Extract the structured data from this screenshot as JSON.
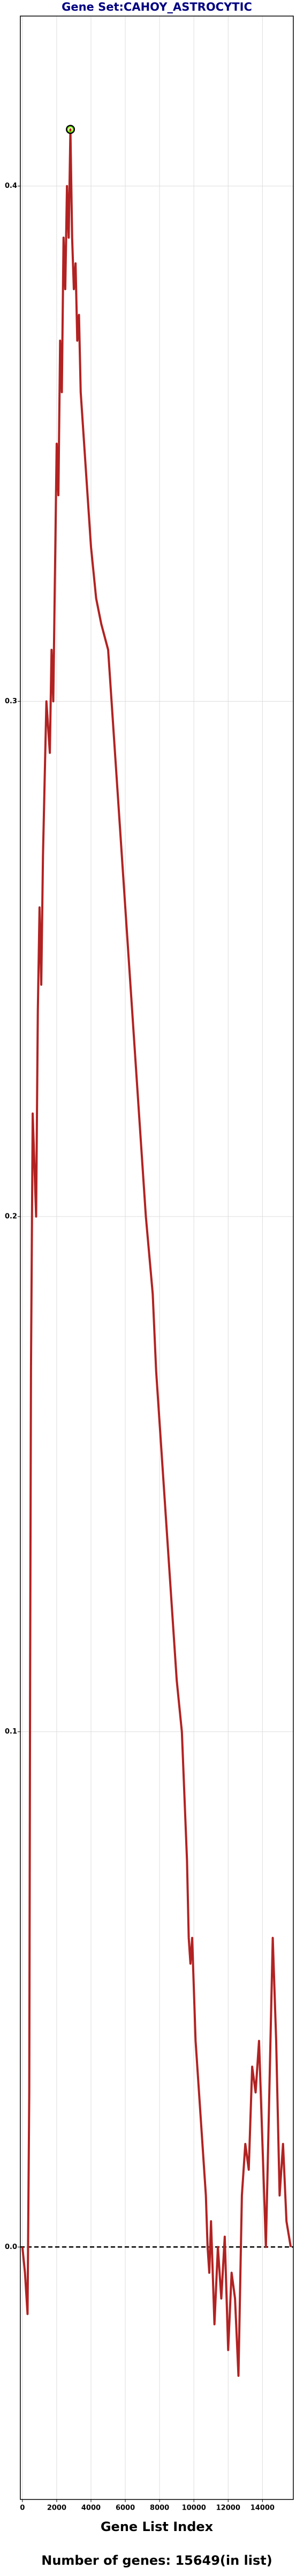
{
  "chart_data": {
    "type": "line",
    "title": "Gene Set:CAHOY_ASTROCYTIC",
    "xlabel": "Gene List Index",
    "annotation": "Number of genes: 15649(in list)",
    "x": [
      0,
      150,
      300,
      400,
      450,
      500,
      600,
      700,
      800,
      900,
      1000,
      1100,
      1200,
      1400,
      1600,
      1700,
      1800,
      2000,
      2100,
      2200,
      2300,
      2400,
      2500,
      2600,
      2700,
      2800,
      2900,
      3000,
      3100,
      3200,
      3300,
      3400,
      3600,
      3800,
      4000,
      4300,
      4600,
      5000,
      5200,
      5400,
      5600,
      6000,
      6400,
      6800,
      7200,
      7600,
      7800,
      8200,
      8600,
      9000,
      9300,
      9600,
      9700,
      9800,
      9900,
      10100,
      10300,
      10500,
      10700,
      10800,
      10900,
      11000,
      11200,
      11400,
      11600,
      11800,
      12000,
      12200,
      12400,
      12600,
      12800,
      13000,
      13200,
      13400,
      13600,
      13800,
      14000,
      14200,
      14400,
      14600,
      14800,
      15000,
      15200,
      15400,
      15649
    ],
    "series": [
      {
        "color": "#b22222",
        "values": [
          0,
          -0.005,
          -0.013,
          0.03,
          0.11,
          0.17,
          0.22,
          0.21,
          0.2,
          0.24,
          0.26,
          0.245,
          0.27,
          0.3,
          0.29,
          0.31,
          0.3,
          0.35,
          0.34,
          0.37,
          0.36,
          0.39,
          0.38,
          0.4,
          0.39,
          0.411,
          0.39,
          0.38,
          0.385,
          0.37,
          0.375,
          0.36,
          0.35,
          0.34,
          0.33,
          0.32,
          0.315,
          0.31,
          0.3,
          0.29,
          0.28,
          0.26,
          0.24,
          0.22,
          0.2,
          0.185,
          0.17,
          0.15,
          0.13,
          0.11,
          0.1,
          0.075,
          0.06,
          0.055,
          0.06,
          0.04,
          0.03,
          0.02,
          0.01,
          0.0,
          -0.005,
          0.005,
          -0.015,
          0.0,
          -0.01,
          0.002,
          -0.02,
          -0.005,
          -0.01,
          -0.025,
          0.01,
          0.02,
          0.015,
          0.035,
          0.03,
          0.04,
          0.02,
          0.0,
          0.03,
          0.06,
          0.04,
          0.01,
          0.02,
          0.005,
          0.0
        ]
      }
    ],
    "xlim": [
      -120,
      15800
    ],
    "ylim": [
      -0.049,
      0.433
    ],
    "xticks": [
      0,
      2000,
      4000,
      6000,
      8000,
      10000,
      12000,
      14000
    ],
    "yticks": [
      {
        "value": 0,
        "label": "0.0"
      },
      0.1,
      0.2,
      0.3,
      0.4
    ],
    "grid": true
  }
}
